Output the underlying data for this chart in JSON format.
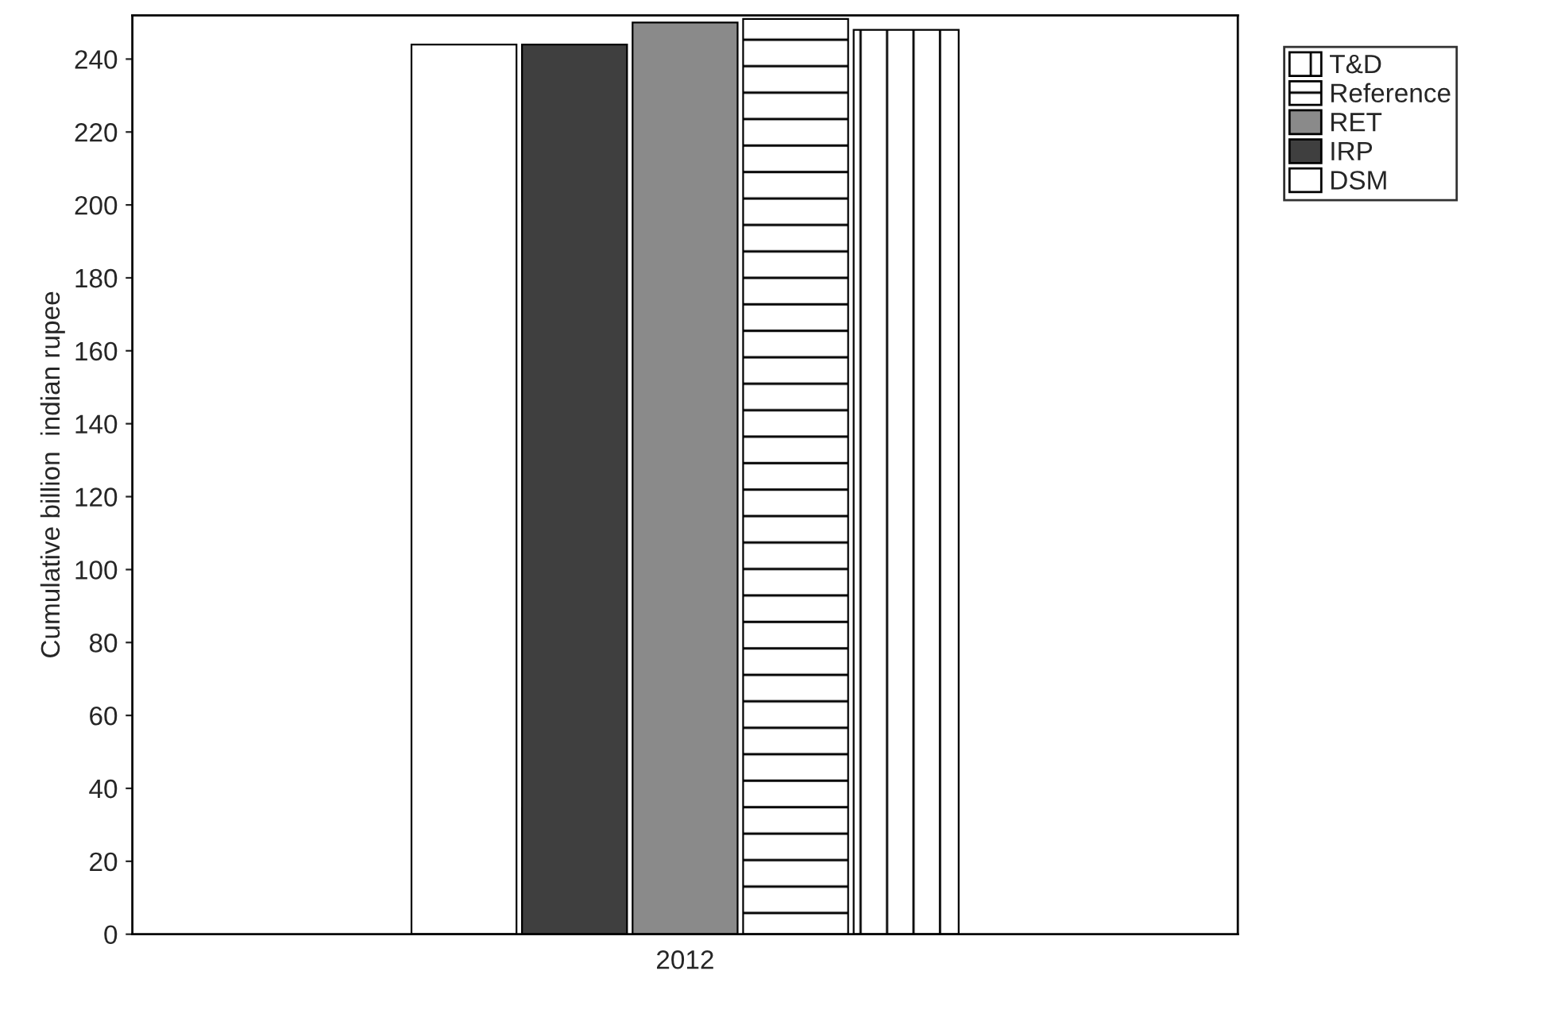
{
  "chart_data": {
    "type": "bar",
    "ylabel": "Cumulative billion  indian rupee",
    "categories": [
      "2012"
    ],
    "series": [
      {
        "name": "DSM",
        "color": "#ffffff",
        "values": [
          244
        ]
      },
      {
        "name": "IRP",
        "color": "#3f3f3f",
        "values": [
          244
        ]
      },
      {
        "name": "RET",
        "color": "#8a8a8a",
        "values": [
          250
        ]
      },
      {
        "name": "Reference",
        "color": "#ffffff",
        "values": [
          251
        ]
      },
      {
        "name": "T&D",
        "color": "#ffffff",
        "values": [
          248
        ]
      }
    ],
    "ylim": [
      0,
      252
    ],
    "yticks": [
      0,
      20,
      40,
      60,
      80,
      100,
      120,
      140,
      160,
      180,
      200,
      220,
      240
    ],
    "grid": false,
    "legend": "top right"
  }
}
